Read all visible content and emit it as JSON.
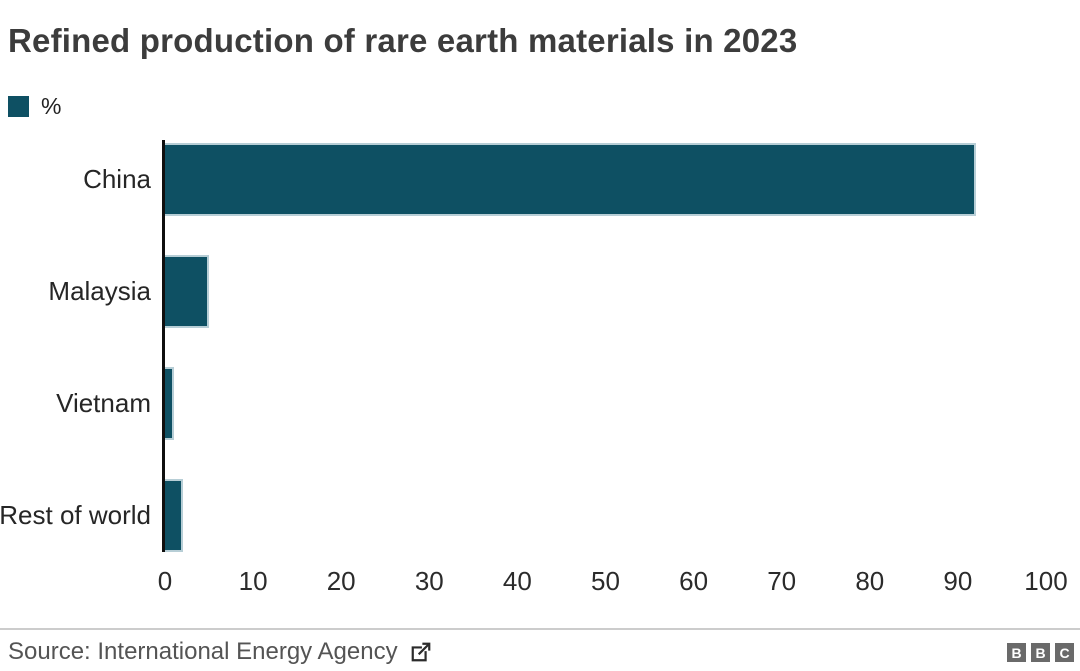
{
  "chart": {
    "title": "Refined production of rare earth materials in 2023",
    "legend_label": "%",
    "source_label": "Source: International Energy Agency",
    "logo_letters": [
      "B",
      "B",
      "C"
    ],
    "colors": {
      "bar": "#0e5063",
      "bar_stroke": "#b7ced6",
      "axis": "#0f0f0f",
      "title": "#3c3c3c",
      "labels": "#262626",
      "source": "#545454",
      "divider": "#cccccc",
      "logo_bg": "#6a6a6a"
    }
  },
  "chart_data": {
    "type": "bar",
    "orientation": "horizontal",
    "title": "Refined production of rare earth materials in 2023",
    "unit": "%",
    "categories": [
      "China",
      "Malaysia",
      "Vietnam",
      "Rest of world"
    ],
    "values": [
      92,
      5,
      1,
      2
    ],
    "xlabel": "",
    "ylabel": "",
    "xlim": [
      0,
      100
    ],
    "x_ticks": [
      0,
      10,
      20,
      30,
      40,
      50,
      60,
      70,
      80,
      90,
      100
    ],
    "grid": false,
    "legend_entries": [
      "%"
    ],
    "legend_position": "top-left",
    "source": "International Energy Agency"
  }
}
